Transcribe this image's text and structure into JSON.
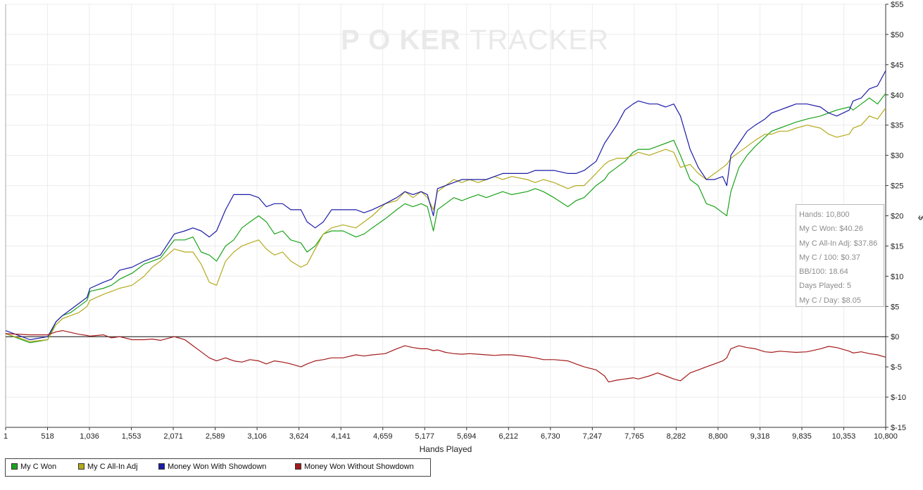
{
  "brand": {
    "part1": "P",
    "chip": "O",
    "part2": "KER",
    "part3": "TRACKER"
  },
  "chart_data": {
    "type": "line",
    "xlabel": "Hands Played",
    "ylabel": "$",
    "xlim": [
      1,
      10800
    ],
    "ylim": [
      -15,
      55
    ],
    "x_ticks": [
      "1",
      "518",
      "1,036",
      "1,553",
      "2,071",
      "2,589",
      "3,106",
      "3,624",
      "4,141",
      "4,659",
      "5,177",
      "5,694",
      "6,212",
      "6,730",
      "7,247",
      "7,765",
      "8,282",
      "8,800",
      "9,318",
      "9,835",
      "10,353",
      "10,800"
    ],
    "y_ticks": [
      "$55",
      "$50",
      "$45",
      "$40",
      "$35",
      "$30",
      "$25",
      "$20",
      "$15",
      "$10",
      "$5",
      "$0",
      "$-5",
      "$-10",
      "$-15"
    ],
    "y_tick_values": [
      55,
      50,
      45,
      40,
      35,
      30,
      25,
      20,
      15,
      10,
      5,
      0,
      -5,
      -10,
      -15
    ],
    "grid": true,
    "legend_position": "bottom-left",
    "series": [
      {
        "name": "My C Won",
        "color": "#1aa31a",
        "x": [
          1,
          300,
          518,
          620,
          700,
          800,
          900,
          1000,
          1036,
          1200,
          1300,
          1400,
          1553,
          1700,
          1800,
          1900,
          2071,
          2200,
          2300,
          2400,
          2500,
          2589,
          2700,
          2800,
          2900,
          3000,
          3106,
          3200,
          3300,
          3400,
          3500,
          3624,
          3700,
          3800,
          3900,
          4000,
          4141,
          4300,
          4400,
          4500,
          4659,
          4800,
          4900,
          5000,
          5100,
          5177,
          5250,
          5300,
          5400,
          5500,
          5600,
          5694,
          5800,
          5900,
          6000,
          6100,
          6212,
          6400,
          6500,
          6600,
          6730,
          6900,
          7000,
          7100,
          7247,
          7350,
          7400,
          7500,
          7600,
          7700,
          7765,
          7900,
          8000,
          8100,
          8200,
          8282,
          8400,
          8500,
          8600,
          8700,
          8800,
          8850,
          8900,
          9000,
          9100,
          9200,
          9318,
          9400,
          9500,
          9600,
          9700,
          9835,
          10000,
          10100,
          10200,
          10353,
          10400,
          10500,
          10600,
          10700,
          10800
        ],
        "values": [
          0.5,
          -1.0,
          -0.5,
          2.5,
          3.5,
          4.0,
          5.0,
          6.0,
          7.5,
          8.0,
          8.5,
          9.5,
          10.5,
          12.0,
          12.5,
          13.0,
          16.0,
          16.0,
          16.5,
          14.0,
          13.5,
          12.5,
          15.0,
          16.0,
          18.0,
          19.0,
          20.0,
          19.0,
          17.0,
          17.5,
          16.0,
          15.5,
          14.0,
          15.0,
          17.0,
          17.5,
          17.5,
          16.5,
          17.0,
          18.0,
          19.5,
          21.0,
          22.0,
          21.5,
          22.0,
          21.5,
          17.5,
          21.0,
          22.0,
          23.0,
          22.5,
          23.0,
          23.5,
          23.0,
          23.5,
          24.0,
          23.5,
          24.0,
          24.5,
          24.0,
          23.0,
          21.5,
          22.5,
          23.0,
          25.0,
          26.0,
          27.0,
          28.0,
          29.0,
          30.5,
          31.0,
          31.0,
          31.5,
          32.0,
          32.5,
          30.0,
          26.0,
          25.0,
          22.0,
          21.5,
          20.5,
          20.0,
          24.0,
          28.0,
          30.0,
          31.5,
          33.0,
          34.0,
          34.5,
          35.0,
          35.5,
          36.0,
          36.5,
          37.0,
          37.5,
          38.0,
          37.5,
          38.5,
          39.5,
          38.5,
          40.26
        ]
      },
      {
        "name": "My C All-In Adj",
        "color": "#b3aa1e",
        "x": [
          1,
          300,
          518,
          620,
          700,
          800,
          900,
          1000,
          1036,
          1200,
          1300,
          1400,
          1553,
          1700,
          1800,
          1900,
          2071,
          2200,
          2300,
          2400,
          2500,
          2589,
          2700,
          2800,
          2900,
          3000,
          3106,
          3200,
          3300,
          3400,
          3500,
          3624,
          3700,
          3800,
          3900,
          4000,
          4141,
          4300,
          4400,
          4500,
          4659,
          4800,
          4900,
          5000,
          5100,
          5177,
          5250,
          5300,
          5400,
          5500,
          5600,
          5694,
          5800,
          5900,
          6000,
          6100,
          6212,
          6400,
          6500,
          6600,
          6730,
          6900,
          7000,
          7100,
          7247,
          7350,
          7400,
          7500,
          7600,
          7700,
          7765,
          7900,
          8000,
          8100,
          8200,
          8282,
          8400,
          8500,
          8600,
          8700,
          8800,
          8850,
          8900,
          9000,
          9100,
          9200,
          9318,
          9400,
          9500,
          9600,
          9700,
          9835,
          10000,
          10100,
          10200,
          10353,
          10400,
          10500,
          10600,
          10700,
          10800
        ],
        "values": [
          0.5,
          -0.8,
          -0.5,
          2.0,
          3.0,
          3.5,
          4.0,
          5.0,
          6.0,
          7.0,
          7.5,
          8.0,
          8.5,
          10.0,
          11.5,
          12.5,
          14.5,
          14.0,
          14.0,
          12.0,
          9.0,
          8.5,
          12.5,
          14.0,
          15.0,
          15.5,
          16.0,
          14.5,
          13.5,
          14.0,
          12.5,
          11.5,
          12.0,
          14.5,
          17.0,
          18.0,
          18.5,
          18.0,
          19.0,
          20.0,
          22.0,
          22.5,
          24.0,
          23.0,
          24.0,
          23.0,
          21.0,
          24.0,
          25.0,
          26.0,
          25.5,
          26.0,
          25.5,
          26.0,
          26.5,
          26.0,
          26.5,
          26.0,
          25.5,
          26.0,
          25.5,
          24.5,
          25.0,
          25.0,
          27.0,
          28.5,
          29.0,
          29.5,
          29.5,
          30.0,
          30.5,
          30.0,
          30.5,
          31.0,
          30.5,
          28.0,
          28.5,
          27.0,
          26.0,
          27.0,
          28.0,
          28.5,
          29.5,
          30.5,
          31.5,
          32.5,
          33.5,
          33.5,
          34.0,
          34.0,
          34.5,
          35.0,
          34.5,
          33.5,
          33.0,
          33.5,
          34.5,
          35.0,
          36.5,
          36.0,
          37.86
        ]
      },
      {
        "name": "Money Won With Showdown",
        "color": "#1c1ca8",
        "x": [
          1,
          300,
          518,
          620,
          700,
          800,
          900,
          1000,
          1036,
          1200,
          1300,
          1400,
          1553,
          1700,
          1800,
          1900,
          2071,
          2200,
          2300,
          2400,
          2500,
          2589,
          2700,
          2800,
          2900,
          3000,
          3106,
          3200,
          3300,
          3400,
          3500,
          3624,
          3700,
          3800,
          3900,
          4000,
          4141,
          4300,
          4400,
          4500,
          4659,
          4800,
          4900,
          5000,
          5100,
          5177,
          5250,
          5300,
          5400,
          5500,
          5600,
          5694,
          5800,
          5900,
          6000,
          6100,
          6212,
          6400,
          6500,
          6600,
          6730,
          6900,
          7000,
          7100,
          7247,
          7350,
          7400,
          7500,
          7600,
          7700,
          7765,
          7900,
          8000,
          8100,
          8200,
          8282,
          8400,
          8500,
          8600,
          8700,
          8800,
          8850,
          8900,
          9000,
          9100,
          9200,
          9318,
          9400,
          9500,
          9600,
          9700,
          9835,
          10000,
          10100,
          10200,
          10353,
          10400,
          10500,
          10600,
          10700,
          10800
        ],
        "values": [
          1.0,
          -0.5,
          0.0,
          2.5,
          3.5,
          4.5,
          5.5,
          6.5,
          8.0,
          9.0,
          9.5,
          11.0,
          11.5,
          12.5,
          13.0,
          13.5,
          17.0,
          17.5,
          18.0,
          17.5,
          16.5,
          17.5,
          21.0,
          23.5,
          23.5,
          23.5,
          23.0,
          21.5,
          22.0,
          22.0,
          21.0,
          21.0,
          19.0,
          18.0,
          19.0,
          21.0,
          21.0,
          21.0,
          20.5,
          21.0,
          22.0,
          23.0,
          24.0,
          23.5,
          24.0,
          23.5,
          20.0,
          24.5,
          25.0,
          25.5,
          26.0,
          26.0,
          26.0,
          26.0,
          26.5,
          27.0,
          27.0,
          27.0,
          27.5,
          27.5,
          27.5,
          27.0,
          27.0,
          27.5,
          29.0,
          32.0,
          33.0,
          35.0,
          37.5,
          38.5,
          39.0,
          38.5,
          38.5,
          38.0,
          38.5,
          36.5,
          31.0,
          28.0,
          26.0,
          26.0,
          26.5,
          25.0,
          30.0,
          32.0,
          34.0,
          35.0,
          36.0,
          37.0,
          37.5,
          38.0,
          38.5,
          38.5,
          38.0,
          37.0,
          36.5,
          37.5,
          39.0,
          39.5,
          41.0,
          41.5,
          44.0
        ]
      },
      {
        "name": "Money Won Without Showdown",
        "color": "#a41a1a",
        "x": [
          1,
          300,
          518,
          620,
          700,
          800,
          900,
          1000,
          1036,
          1200,
          1300,
          1400,
          1553,
          1700,
          1800,
          1900,
          2071,
          2200,
          2300,
          2400,
          2500,
          2589,
          2700,
          2800,
          2900,
          3000,
          3106,
          3200,
          3300,
          3400,
          3500,
          3624,
          3700,
          3800,
          3900,
          4000,
          4141,
          4300,
          4400,
          4500,
          4659,
          4800,
          4900,
          5000,
          5100,
          5177,
          5250,
          5300,
          5400,
          5500,
          5600,
          5694,
          5800,
          5900,
          6000,
          6100,
          6212,
          6400,
          6500,
          6600,
          6730,
          6900,
          7000,
          7100,
          7247,
          7350,
          7400,
          7500,
          7600,
          7700,
          7765,
          7900,
          8000,
          8100,
          8200,
          8282,
          8400,
          8500,
          8600,
          8700,
          8800,
          8850,
          8900,
          9000,
          9100,
          9200,
          9318,
          9400,
          9500,
          9600,
          9700,
          9835,
          10000,
          10100,
          10200,
          10353,
          10400,
          10500,
          10600,
          10700,
          10800
        ],
        "values": [
          0.5,
          0.3,
          0.3,
          0.8,
          1.0,
          0.7,
          0.4,
          0.2,
          0.1,
          0.3,
          -0.2,
          0.0,
          -0.5,
          -0.5,
          -0.4,
          -0.6,
          0.0,
          -0.5,
          -1.5,
          -2.5,
          -3.5,
          -4.0,
          -3.5,
          -4.0,
          -4.2,
          -3.8,
          -4.0,
          -4.5,
          -4.0,
          -4.2,
          -4.5,
          -5.0,
          -4.5,
          -4.0,
          -3.8,
          -3.5,
          -3.5,
          -3.0,
          -3.2,
          -3.0,
          -2.8,
          -2.0,
          -1.5,
          -1.8,
          -2.0,
          -2.0,
          -2.3,
          -2.2,
          -2.6,
          -2.8,
          -2.9,
          -2.8,
          -2.9,
          -3.0,
          -3.1,
          -3.0,
          -3.0,
          -3.3,
          -3.5,
          -3.8,
          -3.8,
          -4.0,
          -4.5,
          -5.0,
          -5.5,
          -6.5,
          -7.5,
          -7.2,
          -7.0,
          -6.8,
          -7.0,
          -6.5,
          -6.0,
          -6.5,
          -7.0,
          -7.3,
          -6.0,
          -5.5,
          -5.0,
          -4.5,
          -4.0,
          -3.5,
          -2.0,
          -1.5,
          -1.8,
          -2.0,
          -2.5,
          -2.6,
          -2.4,
          -2.5,
          -2.6,
          -2.5,
          -2.0,
          -1.6,
          -1.8,
          -2.4,
          -2.7,
          -2.5,
          -2.8,
          -3.0,
          -3.4
        ]
      }
    ],
    "tooltip": {
      "lines": [
        "Hands: 10,800",
        "My C Won: $40.26",
        "My C All-In Adj: $37.86",
        "My C / 100: $0.37",
        "BB/100: 18.64",
        "Days Played: 5",
        "My C / Day: $8.05"
      ]
    }
  }
}
